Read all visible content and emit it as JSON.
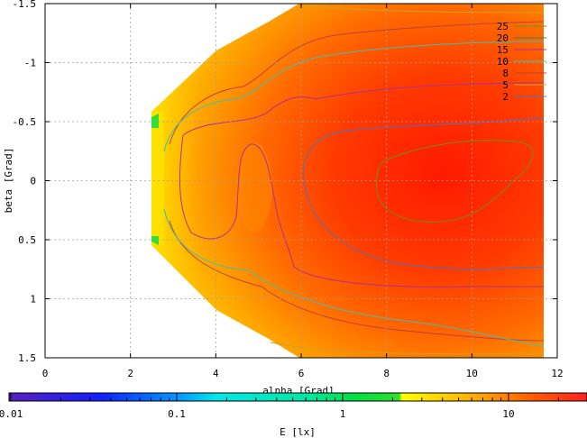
{
  "chart_data": {
    "type": "heatmap",
    "xlabel": "alpha [Grad]",
    "ylabel": "beta [Grad]",
    "colorbar_label": "E [lx]",
    "xlim": [
      0,
      12
    ],
    "ylim": [
      -1.5,
      1.5
    ],
    "y_inverted": true,
    "x_ticks": [
      "0",
      "2",
      "4",
      "6",
      "8",
      "10",
      "12"
    ],
    "y_ticks": [
      "-1.5",
      "-1",
      "-0.5",
      "0",
      "0.5",
      "1",
      "1.5"
    ],
    "grid": true,
    "colorbar_scale": "log",
    "colorbar_range": [
      0.01,
      30
    ],
    "colorbar_ticks": [
      "0.01",
      "0.1",
      "1",
      "10"
    ],
    "legend_position": "top-right",
    "contour_levels": [
      {
        "label": "25",
        "color": "#6b8e23"
      },
      {
        "label": "20",
        "color": "#2e8b57"
      },
      {
        "label": "15",
        "color": "#b03090"
      },
      {
        "label": "10",
        "color": "#40c0b0"
      },
      {
        "label": "8",
        "color": "#c04040"
      },
      {
        "label": "5",
        "color": "#d0a020"
      },
      {
        "label": "2",
        "color": "#5070c0"
      }
    ]
  }
}
